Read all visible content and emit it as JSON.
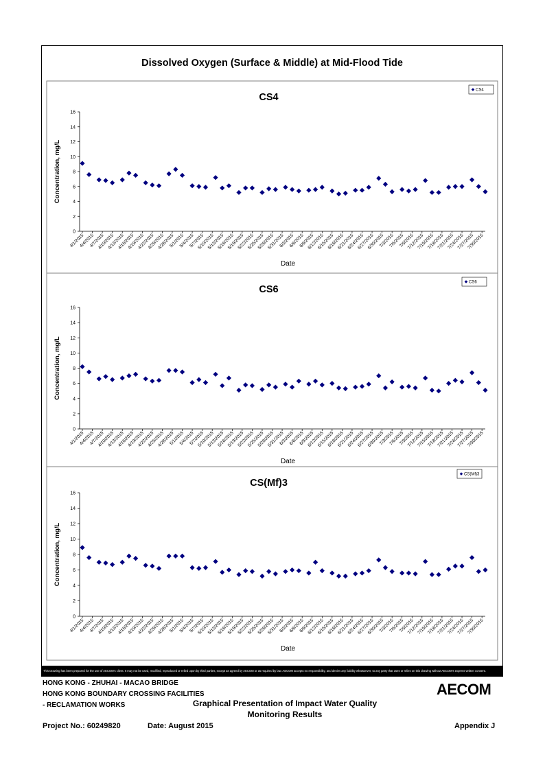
{
  "page": {
    "title": "Dissolved Oxygen (Surface & Middle) at Mid-Flood Tide",
    "disclaimer": "This Drawing has been prepared for the use of AECOM's client. It may not be used, modified, reproduced or relied upon by third parties, except as agreed by AECOM or as required by law. AECOM accepts no responsibility, and denies any liability whatsoever, to any party that uses or relies on this drawing without AECOM's express written consent.",
    "footer": {
      "line1": "HONG KONG - ZHUHAI - MACAO BRIDGE",
      "line2": "HONG KONG BOUNDARY CROSSING FACILITIES",
      "line3": "- RECLAMATION WORKS",
      "center1": "Graphical Presentation of Impact Water Quality",
      "center2": "Monitoring Results",
      "project": "Project No.: 60249820",
      "date": "Date: August 2015",
      "appendix": "Appendix J",
      "logo": "AECOM"
    }
  },
  "chart_data": [
    {
      "type": "scatter",
      "title": "CS4",
      "xlabel": "Date",
      "ylabel": "Concentration, mg/L",
      "ylim": [
        0,
        16
      ],
      "yticks": [
        0,
        2,
        4,
        6,
        8,
        10,
        12,
        14,
        16
      ],
      "xlim": [
        "4/1/2015",
        "7/31/2015"
      ],
      "xtick_labels": [
        "4/1/2015",
        "4/4/2015",
        "4/7/2015",
        "4/10/2015",
        "4/13/2015",
        "4/16/2015",
        "4/19/2015",
        "4/22/2015",
        "4/25/2015",
        "4/28/2015",
        "5/1/2015",
        "5/4/2015",
        "5/7/2015",
        "5/10/2015",
        "5/13/2015",
        "5/16/2015",
        "5/19/2015",
        "5/22/2015",
        "5/25/2015",
        "5/28/2015",
        "5/31/2015",
        "6/3/2015",
        "6/6/2015",
        "6/9/2015",
        "6/12/2015",
        "6/15/2015",
        "6/18/2015",
        "6/21/2015",
        "6/24/2015",
        "6/27/2015",
        "6/30/2015",
        "7/3/2015",
        "7/6/2015",
        "7/9/2015",
        "7/12/2015",
        "7/15/2015",
        "7/18/2015",
        "7/21/2015",
        "7/24/2015",
        "7/27/2015",
        "7/30/2015"
      ],
      "legend": "top-right",
      "grid": false,
      "color": "#000080",
      "series": [
        {
          "name": "CS4",
          "x": [
            "4/1/2015",
            "4/3/2015",
            "4/6/2015",
            "4/8/2015",
            "4/10/2015",
            "4/13/2015",
            "4/15/2015",
            "4/17/2015",
            "4/20/2015",
            "4/22/2015",
            "4/24/2015",
            "4/27/2015",
            "4/29/2015",
            "5/1/2015",
            "5/4/2015",
            "5/6/2015",
            "5/8/2015",
            "5/11/2015",
            "5/13/2015",
            "5/15/2015",
            "5/18/2015",
            "5/20/2015",
            "5/22/2015",
            "5/25/2015",
            "5/27/2015",
            "5/29/2015",
            "6/1/2015",
            "6/3/2015",
            "6/5/2015",
            "6/8/2015",
            "6/10/2015",
            "6/12/2015",
            "6/15/2015",
            "6/17/2015",
            "6/19/2015",
            "6/22/2015",
            "6/24/2015",
            "6/26/2015",
            "6/29/2015",
            "7/1/2015",
            "7/3/2015",
            "7/6/2015",
            "7/8/2015",
            "7/10/2015",
            "7/13/2015",
            "7/15/2015",
            "7/17/2015",
            "7/20/2015",
            "7/22/2015",
            "7/24/2015",
            "7/27/2015",
            "7/29/2015",
            "7/31/2015"
          ],
          "y": [
            9.1,
            7.6,
            6.9,
            6.8,
            6.5,
            6.9,
            7.8,
            7.5,
            6.5,
            6.2,
            6.1,
            7.7,
            8.3,
            7.5,
            6.1,
            6.0,
            5.9,
            7.2,
            5.8,
            6.1,
            5.2,
            5.8,
            5.8,
            5.2,
            5.7,
            5.6,
            5.9,
            5.6,
            5.4,
            5.5,
            5.6,
            5.9,
            5.4,
            5.0,
            5.1,
            5.5,
            5.5,
            5.9,
            7.1,
            6.3,
            5.3,
            5.6,
            5.4,
            5.6,
            6.8,
            5.2,
            5.2,
            5.9,
            6.0,
            6.0,
            6.9,
            6.0,
            5.3
          ]
        }
      ]
    },
    {
      "type": "scatter",
      "title": "CS6",
      "xlabel": "Date",
      "ylabel": "Concentration, mg/L",
      "ylim": [
        0,
        16
      ],
      "yticks": [
        0,
        2,
        4,
        6,
        8,
        10,
        12,
        14,
        16
      ],
      "xlim": [
        "4/1/2015",
        "7/31/2015"
      ],
      "xtick_labels": [
        "4/1/2015",
        "4/4/2015",
        "4/7/2015",
        "4/10/2015",
        "4/13/2015",
        "4/16/2015",
        "4/19/2015",
        "4/22/2015",
        "4/25/2015",
        "4/28/2015",
        "5/1/2015",
        "5/4/2015",
        "5/7/2015",
        "5/10/2015",
        "5/13/2015",
        "5/16/2015",
        "5/19/2015",
        "5/22/2015",
        "5/25/2015",
        "5/28/2015",
        "5/31/2015",
        "6/3/2015",
        "6/6/2015",
        "6/9/2015",
        "6/12/2015",
        "6/15/2015",
        "6/18/2015",
        "6/21/2015",
        "6/24/2015",
        "6/27/2015",
        "6/30/2015",
        "7/3/2015",
        "7/6/2015",
        "7/9/2015",
        "7/12/2015",
        "7/15/2015",
        "7/18/2015",
        "7/21/2015",
        "7/24/2015",
        "7/27/2015",
        "7/30/2015"
      ],
      "legend": "top-right",
      "grid": false,
      "color": "#000080",
      "series": [
        {
          "name": "CS6",
          "x": [
            "4/1/2015",
            "4/3/2015",
            "4/6/2015",
            "4/8/2015",
            "4/10/2015",
            "4/13/2015",
            "4/15/2015",
            "4/17/2015",
            "4/20/2015",
            "4/22/2015",
            "4/24/2015",
            "4/27/2015",
            "4/29/2015",
            "5/1/2015",
            "5/4/2015",
            "5/6/2015",
            "5/8/2015",
            "5/11/2015",
            "5/13/2015",
            "5/15/2015",
            "5/18/2015",
            "5/20/2015",
            "5/22/2015",
            "5/25/2015",
            "5/27/2015",
            "5/29/2015",
            "6/1/2015",
            "6/3/2015",
            "6/5/2015",
            "6/8/2015",
            "6/10/2015",
            "6/12/2015",
            "6/15/2015",
            "6/17/2015",
            "6/19/2015",
            "6/22/2015",
            "6/24/2015",
            "6/26/2015",
            "6/29/2015",
            "7/1/2015",
            "7/3/2015",
            "7/6/2015",
            "7/8/2015",
            "7/10/2015",
            "7/13/2015",
            "7/15/2015",
            "7/17/2015",
            "7/20/2015",
            "7/22/2015",
            "7/24/2015",
            "7/27/2015",
            "7/29/2015",
            "7/31/2015"
          ],
          "y": [
            8.2,
            7.5,
            6.6,
            6.9,
            6.5,
            6.7,
            7.0,
            7.2,
            6.6,
            6.3,
            6.4,
            7.7,
            7.7,
            7.5,
            6.1,
            6.5,
            6.1,
            7.2,
            5.7,
            6.7,
            5.1,
            5.8,
            5.7,
            5.2,
            5.8,
            5.5,
            5.9,
            5.5,
            6.3,
            5.9,
            6.3,
            5.8,
            6.0,
            5.4,
            5.3,
            5.5,
            5.6,
            5.9,
            7.0,
            5.4,
            6.2,
            5.5,
            5.6,
            5.4,
            6.7,
            5.1,
            5.0,
            6.0,
            6.4,
            6.2,
            7.4,
            6.1,
            5.1
          ]
        }
      ]
    },
    {
      "type": "scatter",
      "title": "CS(Mf)3",
      "xlabel": "Date",
      "ylabel": "Concentration, mg/L",
      "ylim": [
        0,
        16
      ],
      "yticks": [
        0,
        2,
        4,
        6,
        8,
        10,
        12,
        14,
        16
      ],
      "xlim": [
        "4/1/2015",
        "7/31/2015"
      ],
      "xtick_labels": [
        "4/1/2015",
        "4/4/2015",
        "4/7/2015",
        "4/10/2015",
        "4/13/2015",
        "4/16/2015",
        "4/19/2015",
        "4/22/2015",
        "4/25/2015",
        "4/28/2015",
        "5/1/2015",
        "5/4/2015",
        "5/7/2015",
        "5/10/2015",
        "5/13/2015",
        "5/16/2015",
        "5/19/2015",
        "5/22/2015",
        "5/25/2015",
        "5/28/2015",
        "5/31/2015",
        "6/3/2015",
        "6/6/2015",
        "6/9/2015",
        "6/12/2015",
        "6/15/2015",
        "6/18/2015",
        "6/21/2015",
        "6/24/2015",
        "6/27/2015",
        "6/30/2015",
        "7/3/2015",
        "7/6/2015",
        "7/9/2015",
        "7/12/2015",
        "7/15/2015",
        "7/18/2015",
        "7/21/2015",
        "7/24/2015",
        "7/27/2015",
        "7/30/2015"
      ],
      "legend": "top-right",
      "grid": false,
      "color": "#000080",
      "series": [
        {
          "name": "CS(Mf)3",
          "x": [
            "4/1/2015",
            "4/3/2015",
            "4/6/2015",
            "4/8/2015",
            "4/10/2015",
            "4/13/2015",
            "4/15/2015",
            "4/17/2015",
            "4/20/2015",
            "4/22/2015",
            "4/24/2015",
            "4/27/2015",
            "4/29/2015",
            "5/1/2015",
            "5/4/2015",
            "5/6/2015",
            "5/8/2015",
            "5/11/2015",
            "5/13/2015",
            "5/15/2015",
            "5/18/2015",
            "5/20/2015",
            "5/22/2015",
            "5/25/2015",
            "5/27/2015",
            "5/29/2015",
            "6/1/2015",
            "6/3/2015",
            "6/5/2015",
            "6/8/2015",
            "6/10/2015",
            "6/12/2015",
            "6/15/2015",
            "6/17/2015",
            "6/19/2015",
            "6/22/2015",
            "6/24/2015",
            "6/26/2015",
            "6/29/2015",
            "7/1/2015",
            "7/3/2015",
            "7/6/2015",
            "7/8/2015",
            "7/10/2015",
            "7/13/2015",
            "7/15/2015",
            "7/17/2015",
            "7/20/2015",
            "7/22/2015",
            "7/24/2015",
            "7/27/2015",
            "7/29/2015",
            "7/31/2015"
          ],
          "y": [
            8.9,
            7.6,
            7.0,
            6.9,
            6.7,
            7.0,
            7.8,
            7.5,
            6.6,
            6.5,
            6.2,
            7.8,
            7.8,
            7.8,
            6.3,
            6.2,
            6.3,
            7.1,
            5.7,
            6.0,
            5.4,
            5.9,
            5.8,
            5.2,
            5.8,
            5.5,
            5.8,
            6.0,
            5.9,
            5.6,
            7.0,
            5.9,
            5.6,
            5.2,
            5.2,
            5.5,
            5.6,
            5.9,
            7.3,
            6.3,
            5.8,
            5.6,
            5.6,
            5.5,
            7.1,
            5.4,
            5.4,
            6.1,
            6.5,
            6.5,
            7.6,
            5.8,
            6.0
          ]
        }
      ]
    }
  ]
}
